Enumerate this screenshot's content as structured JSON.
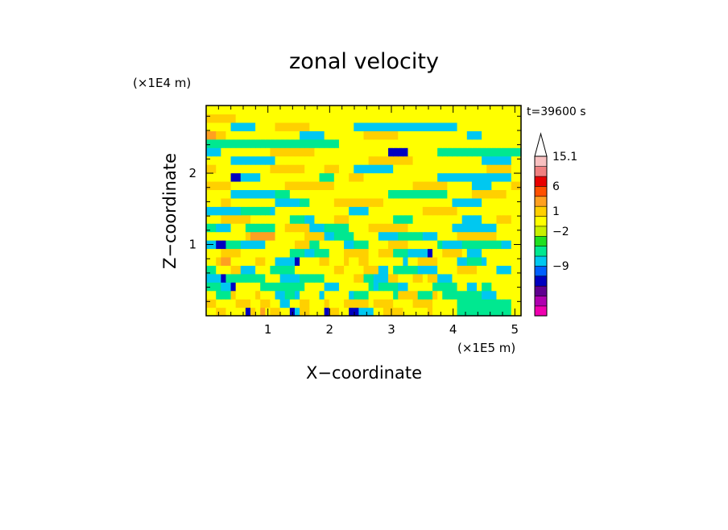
{
  "chart_data": {
    "type": "heatmap",
    "title": "zonal velocity",
    "xlabel": "X−coordinate",
    "ylabel": "Z−coordinate",
    "x_unit": "(×1E5 m)",
    "y_unit": "(×1E4 m)",
    "time_label": "t=39600 s",
    "xlim": [
      0,
      5.1
    ],
    "ylim": [
      0,
      2.95
    ],
    "x_ticks": [
      {
        "value": 1,
        "label": "1"
      },
      {
        "value": 2,
        "label": "2"
      },
      {
        "value": 3,
        "label": "3"
      },
      {
        "value": 4,
        "label": "4"
      },
      {
        "value": 5,
        "label": "5"
      }
    ],
    "y_ticks": [
      {
        "value": 1,
        "label": "1"
      },
      {
        "value": 2,
        "label": "2"
      }
    ],
    "colorbar": {
      "colors": [
        "#f000b0",
        "#b000b0",
        "#600090",
        "#0000c0",
        "#0060ff",
        "#00c8f0",
        "#00e890",
        "#20e020",
        "#c8f000",
        "#ffff00",
        "#ffd000",
        "#ffa020",
        "#ff5000",
        "#e80000",
        "#f08080",
        "#f8c0c0",
        "#ffffff"
      ],
      "labels": [
        {
          "level": 16,
          "text": "15.1"
        },
        {
          "level": 13,
          "text": "6"
        },
        {
          "level": 10.5,
          "text": "1"
        },
        {
          "level": 8.5,
          "text": "−2"
        },
        {
          "level": 5,
          "text": "−9"
        }
      ]
    },
    "field": {
      "description_of_grid": "rows from bottom (z=0) to top (z=2.95), columns from x=0 to x=5.1",
      "colormap": [
        "#00e890",
        "#00c8f0",
        "#0000c0",
        "#ffff00",
        "#ffd000",
        "#ffa020",
        "#ff5000"
      ],
      "rows": [
        "3344333324353443321443332443322111334444333334333330000000000033",
        "4433334443344331133443334333444443444433334444333330000000000033",
        "3300043333433311001333313333310003333304444000430000000011133333",
        "0001123333300000000033331113333330100001133333000003311300333333",
        "1112000000003331111000003333334400111443334434411133333333333333",
        "0033344111333000003333333344333344411300000111133334444333311133",
        "3345533333443311112333344333433443333333133444433331100013333333",
        "3334444333333333300011000333444443344400011112334444311133333333",
        "1122000111113333334440033333110003333444433333301111000000001133",
        "3333333345555533333344441100003333311110000011133334444444433333",
        "0011133300000033444441110000033334444444433333333311111111133333",
        "3334444443333333300011333344433333333300003333333333111133344433",
        "1111111000000133333333333333311113333333333344444443333333333333",
        "3334433333333311111003333344444444443333333333333311111133333333",
        "3333311111111100033333333333333333333000000000000333334444444333",
        "4444433333333333444444444433333333333333334444444333331111333344",
        "3333322111133333333333300033344433333333333333311111111111111133",
        "4433333333333444444433334443331111111133333333333333333334444433",
        "3333311111111133333333333333333334444444443333333333333311111133",
        "1113333333333444444444333333333333333222233333300000000000000000",
        "0000000000000000000000000003333333333333333333333333333333333333",
        "5544333333333333333111113333333344444443333333333333311133333333",
        "3333311111333344444443333333331111111111111111111113333333333333",
        "4444443333333333333333333333333333333333333333333333333333333333",
        "3333333333333333333333333333333333333333333333333333333333333333"
      ]
    },
    "colors": {
      "axis": "#000000",
      "background": "#ffffff"
    }
  }
}
